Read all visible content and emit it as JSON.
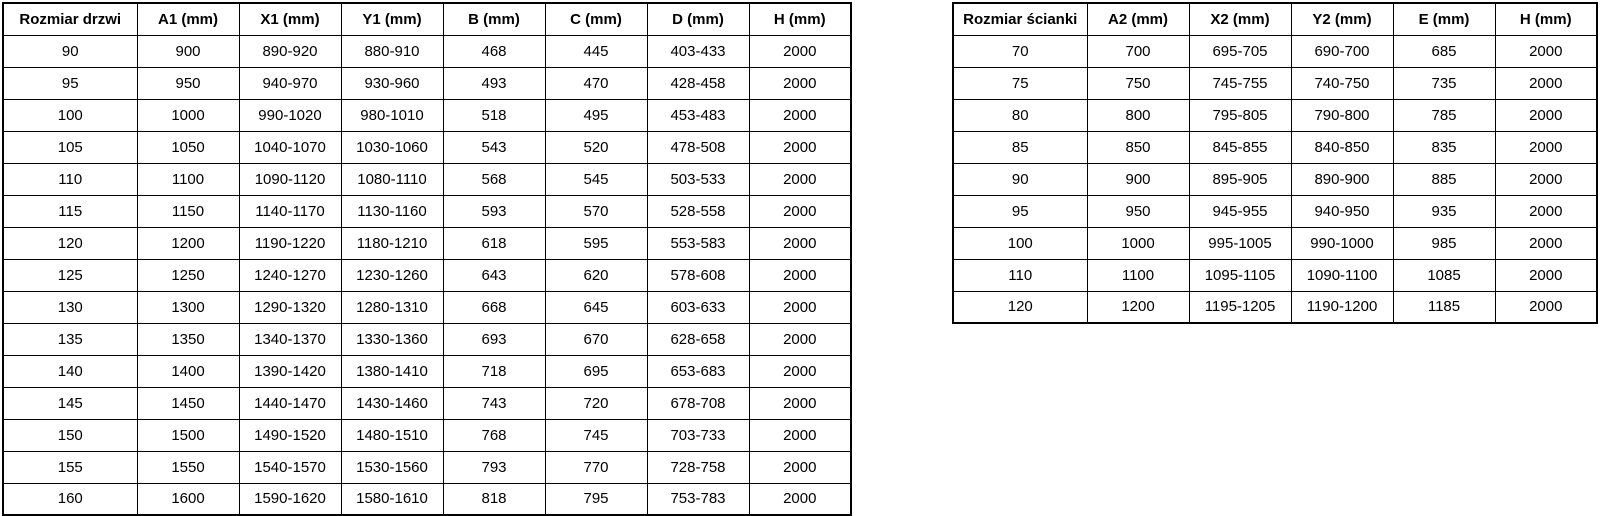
{
  "door_table": {
    "title": "Rozmiar drzwi table",
    "headers": [
      "Rozmiar drzwi",
      "A1 (mm)",
      "X1 (mm)",
      "Y1 (mm)",
      "B (mm)",
      "C (mm)",
      "D (mm)",
      "H (mm)"
    ],
    "rows": [
      [
        "90",
        "900",
        "890-920",
        "880-910",
        "468",
        "445",
        "403-433",
        "2000"
      ],
      [
        "95",
        "950",
        "940-970",
        "930-960",
        "493",
        "470",
        "428-458",
        "2000"
      ],
      [
        "100",
        "1000",
        "990-1020",
        "980-1010",
        "518",
        "495",
        "453-483",
        "2000"
      ],
      [
        "105",
        "1050",
        "1040-1070",
        "1030-1060",
        "543",
        "520",
        "478-508",
        "2000"
      ],
      [
        "110",
        "1100",
        "1090-1120",
        "1080-1110",
        "568",
        "545",
        "503-533",
        "2000"
      ],
      [
        "115",
        "1150",
        "1140-1170",
        "1130-1160",
        "593",
        "570",
        "528-558",
        "2000"
      ],
      [
        "120",
        "1200",
        "1190-1220",
        "1180-1210",
        "618",
        "595",
        "553-583",
        "2000"
      ],
      [
        "125",
        "1250",
        "1240-1270",
        "1230-1260",
        "643",
        "620",
        "578-608",
        "2000"
      ],
      [
        "130",
        "1300",
        "1290-1320",
        "1280-1310",
        "668",
        "645",
        "603-633",
        "2000"
      ],
      [
        "135",
        "1350",
        "1340-1370",
        "1330-1360",
        "693",
        "670",
        "628-658",
        "2000"
      ],
      [
        "140",
        "1400",
        "1390-1420",
        "1380-1410",
        "718",
        "695",
        "653-683",
        "2000"
      ],
      [
        "145",
        "1450",
        "1440-1470",
        "1430-1460",
        "743",
        "720",
        "678-708",
        "2000"
      ],
      [
        "150",
        "1500",
        "1490-1520",
        "1480-1510",
        "768",
        "745",
        "703-733",
        "2000"
      ],
      [
        "155",
        "1550",
        "1540-1570",
        "1530-1560",
        "793",
        "770",
        "728-758",
        "2000"
      ],
      [
        "160",
        "1600",
        "1590-1620",
        "1580-1610",
        "818",
        "795",
        "753-783",
        "2000"
      ]
    ]
  },
  "wall_table": {
    "title": "Rozmiar ścianki table",
    "headers": [
      "Rozmiar ścianki",
      "A2 (mm)",
      "X2 (mm)",
      "Y2 (mm)",
      "E (mm)",
      "H (mm)"
    ],
    "rows": [
      [
        "70",
        "700",
        "695-705",
        "690-700",
        "685",
        "2000"
      ],
      [
        "75",
        "750",
        "745-755",
        "740-750",
        "735",
        "2000"
      ],
      [
        "80",
        "800",
        "795-805",
        "790-800",
        "785",
        "2000"
      ],
      [
        "85",
        "850",
        "845-855",
        "840-850",
        "835",
        "2000"
      ],
      [
        "90",
        "900",
        "895-905",
        "890-900",
        "885",
        "2000"
      ],
      [
        "95",
        "950",
        "945-955",
        "940-950",
        "935",
        "2000"
      ],
      [
        "100",
        "1000",
        "995-1005",
        "990-1000",
        "985",
        "2000"
      ],
      [
        "110",
        "1100",
        "1095-1105",
        "1090-1100",
        "1085",
        "2000"
      ],
      [
        "120",
        "1200",
        "1195-1205",
        "1190-1200",
        "1185",
        "2000"
      ]
    ]
  },
  "colors": {
    "border": "#000000",
    "text": "#000000",
    "background": "#ffffff"
  }
}
